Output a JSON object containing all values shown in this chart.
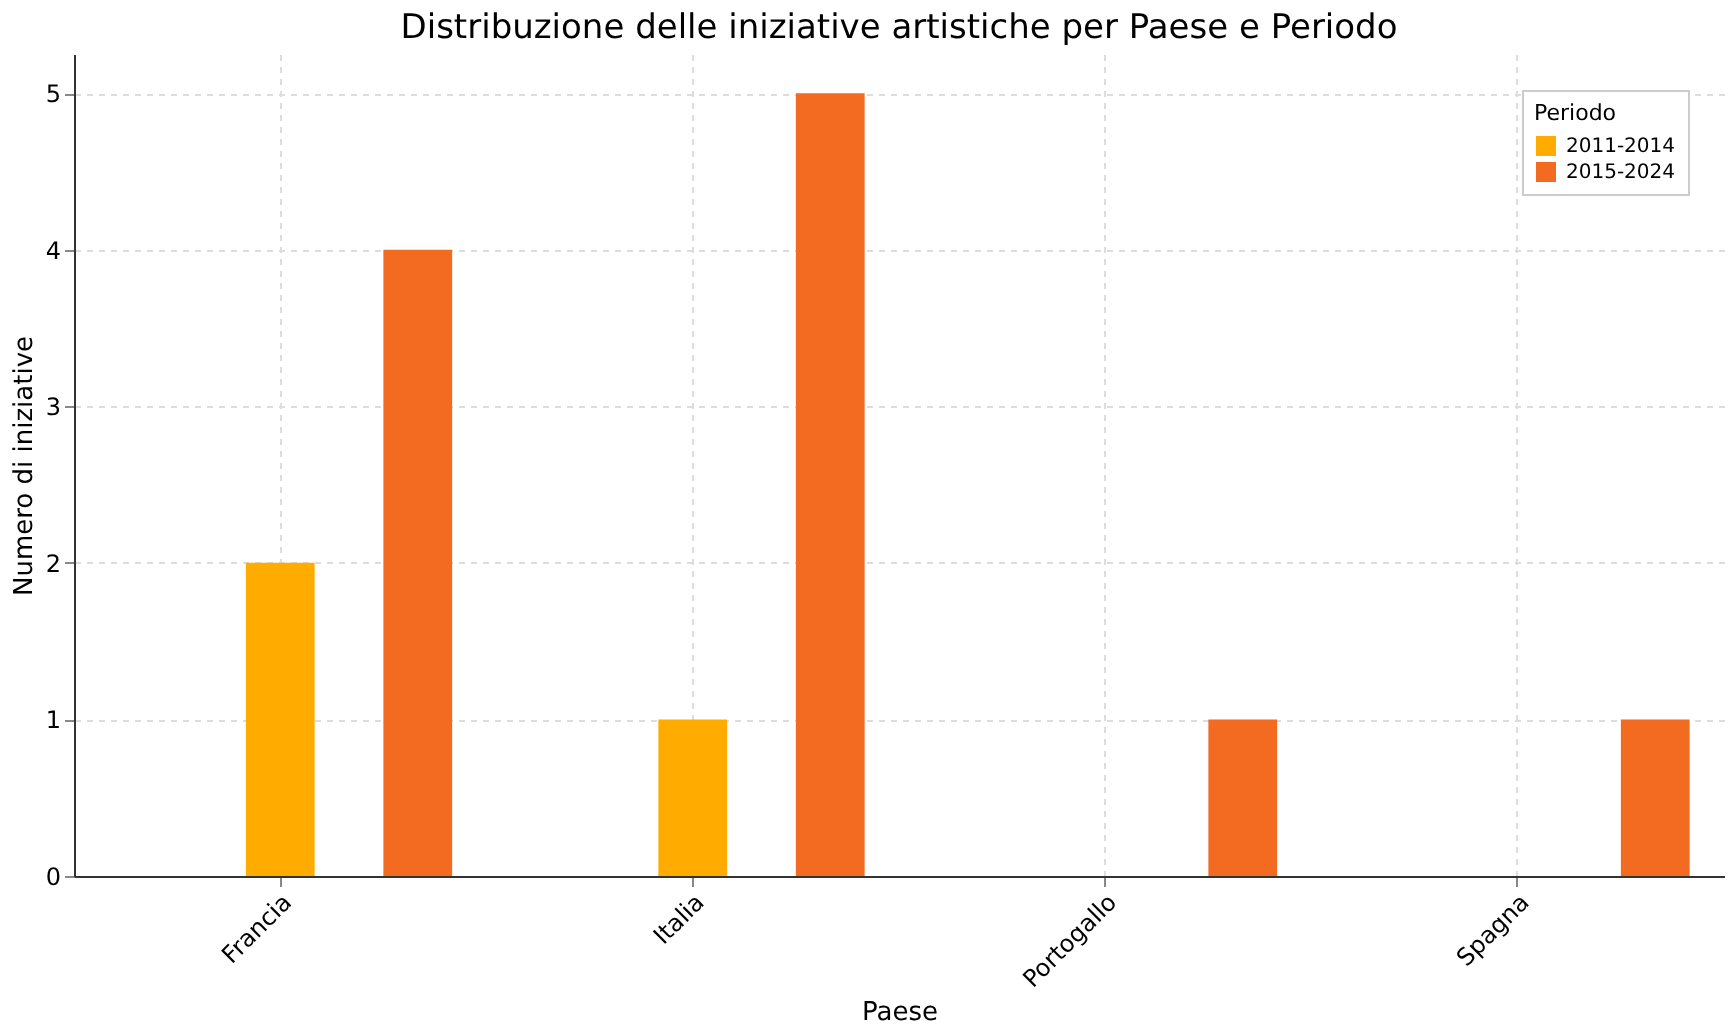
{
  "chart_data": {
    "type": "bar",
    "title": "Distribuzione delle iniziative artistiche per Paese e Periodo",
    "xlabel": "Paese",
    "ylabel": "Numero di iniziative",
    "legend_title": "Periodo",
    "categories": [
      "Francia",
      "Italia",
      "Portogallo",
      "Spagna"
    ],
    "series": [
      {
        "name": "2011-2014",
        "color": "#ffab00",
        "values": [
          2,
          1,
          0,
          0
        ]
      },
      {
        "name": "2015-2024",
        "color": "#f26b21",
        "values": [
          4,
          5,
          1,
          1
        ]
      }
    ],
    "ylim": [
      0,
      5.25
    ],
    "yticks": [
      0,
      1,
      2,
      3,
      4,
      5
    ],
    "grid": true,
    "legend": "top right"
  }
}
